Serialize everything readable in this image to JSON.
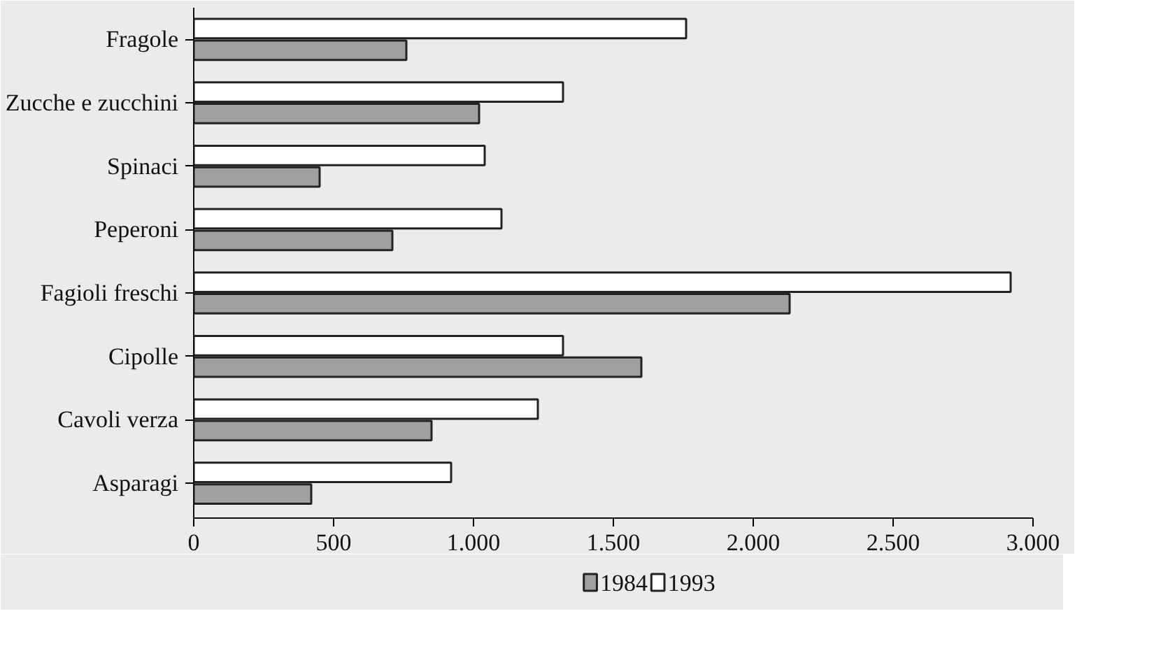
{
  "chart_data": {
    "type": "bar",
    "orientation": "horizontal",
    "categories": [
      "Fragole",
      "Zucche e zucchini",
      "Spinaci",
      "Peperoni",
      "Fagioli freschi",
      "Cipolle",
      "Cavoli verza",
      "Asparagi"
    ],
    "series": [
      {
        "name": "1984",
        "color": "#a0a0a0",
        "values": [
          760,
          1020,
          450,
          710,
          2130,
          1600,
          850,
          420
        ]
      },
      {
        "name": "1993",
        "color": "#ffffff",
        "values": [
          1760,
          1320,
          1040,
          1100,
          2920,
          1320,
          1230,
          920
        ]
      }
    ],
    "xlim": [
      0,
      3000
    ],
    "xticks": [
      {
        "value": 0,
        "label": "0"
      },
      {
        "value": 500,
        "label": "500"
      },
      {
        "value": 1000,
        "label": "1.000"
      },
      {
        "value": 1500,
        "label": "1.500"
      },
      {
        "value": 2000,
        "label": "2.000"
      },
      {
        "value": 2500,
        "label": "2.500"
      },
      {
        "value": 3000,
        "label": "3.000"
      }
    ],
    "grid": false,
    "legend": "bottom"
  }
}
